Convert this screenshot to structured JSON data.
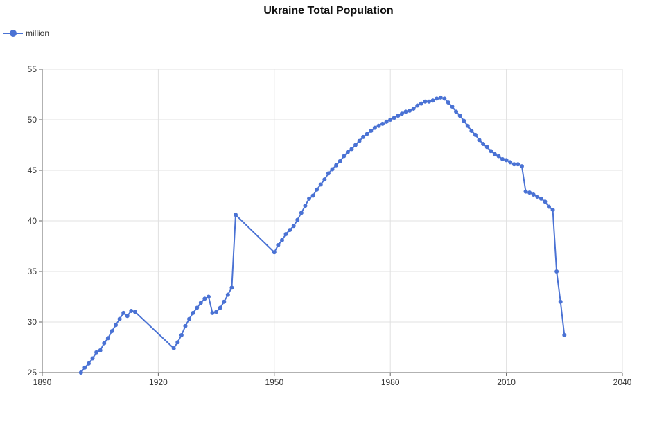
{
  "chart_data": {
    "type": "line",
    "title": "Ukraine Total Population",
    "xlabel": "",
    "ylabel": "",
    "xlim": [
      1890,
      2040
    ],
    "ylim": [
      25,
      55
    ],
    "x_ticks": [
      1890,
      1920,
      1950,
      1980,
      2010,
      2040
    ],
    "y_ticks": [
      25,
      30,
      35,
      40,
      45,
      50,
      55
    ],
    "grid": true,
    "legend_position": "top-left",
    "colors": {
      "series": "#4a72d4",
      "grid": "#e0e0e0",
      "axis": "#666666"
    },
    "series": [
      {
        "name": "million",
        "points": [
          [
            1900,
            25.0
          ],
          [
            1901,
            25.5
          ],
          [
            1902,
            25.9
          ],
          [
            1903,
            26.4
          ],
          [
            1904,
            27.0
          ],
          [
            1905,
            27.2
          ],
          [
            1906,
            27.9
          ],
          [
            1907,
            28.4
          ],
          [
            1908,
            29.1
          ],
          [
            1909,
            29.7
          ],
          [
            1910,
            30.3
          ],
          [
            1911,
            30.9
          ],
          [
            1912,
            30.6
          ],
          [
            1913,
            31.1
          ],
          [
            1914,
            31.0
          ],
          [
            1924,
            27.4
          ],
          [
            1925,
            28.0
          ],
          [
            1926,
            28.7
          ],
          [
            1927,
            29.6
          ],
          [
            1928,
            30.3
          ],
          [
            1929,
            30.9
          ],
          [
            1930,
            31.4
          ],
          [
            1931,
            31.9
          ],
          [
            1932,
            32.3
          ],
          [
            1933,
            32.5
          ],
          [
            1934,
            30.9
          ],
          [
            1935,
            31.0
          ],
          [
            1936,
            31.4
          ],
          [
            1937,
            32.0
          ],
          [
            1938,
            32.7
          ],
          [
            1939,
            33.4
          ],
          [
            1940,
            40.6
          ],
          [
            1950,
            36.9
          ],
          [
            1951,
            37.6
          ],
          [
            1952,
            38.1
          ],
          [
            1953,
            38.7
          ],
          [
            1954,
            39.1
          ],
          [
            1955,
            39.5
          ],
          [
            1956,
            40.1
          ],
          [
            1957,
            40.8
          ],
          [
            1958,
            41.5
          ],
          [
            1959,
            42.2
          ],
          [
            1960,
            42.5
          ],
          [
            1961,
            43.1
          ],
          [
            1962,
            43.6
          ],
          [
            1963,
            44.1
          ],
          [
            1964,
            44.7
          ],
          [
            1965,
            45.1
          ],
          [
            1966,
            45.5
          ],
          [
            1967,
            45.9
          ],
          [
            1968,
            46.4
          ],
          [
            1969,
            46.8
          ],
          [
            1970,
            47.1
          ],
          [
            1971,
            47.5
          ],
          [
            1972,
            47.9
          ],
          [
            1973,
            48.3
          ],
          [
            1974,
            48.6
          ],
          [
            1975,
            48.9
          ],
          [
            1976,
            49.2
          ],
          [
            1977,
            49.4
          ],
          [
            1978,
            49.6
          ],
          [
            1979,
            49.8
          ],
          [
            1980,
            50.0
          ],
          [
            1981,
            50.2
          ],
          [
            1982,
            50.4
          ],
          [
            1983,
            50.6
          ],
          [
            1984,
            50.8
          ],
          [
            1985,
            50.9
          ],
          [
            1986,
            51.1
          ],
          [
            1987,
            51.4
          ],
          [
            1988,
            51.6
          ],
          [
            1989,
            51.8
          ],
          [
            1990,
            51.8
          ],
          [
            1991,
            51.9
          ],
          [
            1992,
            52.1
          ],
          [
            1993,
            52.2
          ],
          [
            1994,
            52.1
          ],
          [
            1995,
            51.7
          ],
          [
            1996,
            51.3
          ],
          [
            1997,
            50.8
          ],
          [
            1998,
            50.4
          ],
          [
            1999,
            49.9
          ],
          [
            2000,
            49.4
          ],
          [
            2001,
            48.9
          ],
          [
            2002,
            48.5
          ],
          [
            2003,
            48.0
          ],
          [
            2004,
            47.6
          ],
          [
            2005,
            47.3
          ],
          [
            2006,
            46.9
          ],
          [
            2007,
            46.6
          ],
          [
            2008,
            46.4
          ],
          [
            2009,
            46.1
          ],
          [
            2010,
            46.0
          ],
          [
            2011,
            45.8
          ],
          [
            2012,
            45.6
          ],
          [
            2013,
            45.6
          ],
          [
            2014,
            45.4
          ],
          [
            2015,
            42.9
          ],
          [
            2016,
            42.8
          ],
          [
            2017,
            42.6
          ],
          [
            2018,
            42.4
          ],
          [
            2019,
            42.2
          ],
          [
            2020,
            41.9
          ],
          [
            2021,
            41.4
          ],
          [
            2022,
            41.1
          ],
          [
            2023,
            35.0
          ],
          [
            2024,
            32.0
          ],
          [
            2025,
            28.7
          ]
        ]
      }
    ]
  }
}
